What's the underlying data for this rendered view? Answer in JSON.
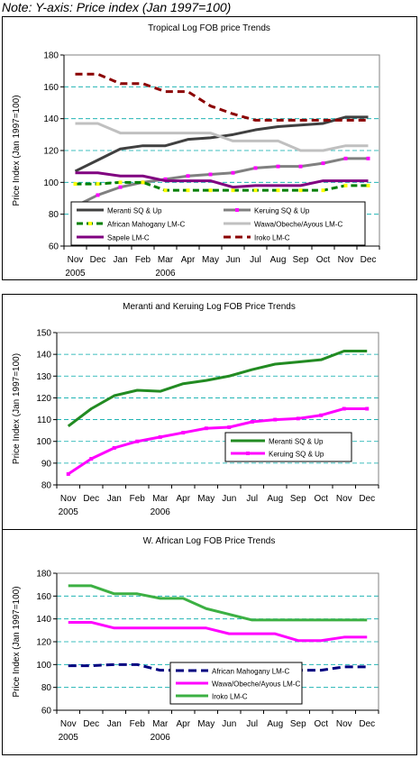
{
  "note": "Note: Y-axis: Price index (Jan 1997=100)",
  "chart_data": [
    {
      "type": "line",
      "title": "Tropical Log FOB price Trends",
      "ylabel": "Price Index (Jan 1997=100)",
      "xlabel": "",
      "categories": [
        "Nov",
        "Dec",
        "Jan",
        "Feb",
        "Mar",
        "Apr",
        "May",
        "Jun",
        "Jul",
        "Aug",
        "Sep",
        "Oct",
        "Nov",
        "Dec"
      ],
      "year_labels": [
        {
          "index": 0,
          "label": "2005"
        },
        {
          "index": 4,
          "label": "2006"
        }
      ],
      "ylim": [
        60,
        180
      ],
      "yticks": [
        60,
        80,
        100,
        120,
        140,
        160,
        180
      ],
      "grid": true,
      "legend_position": "bottom-inside",
      "series": [
        {
          "name": "Meranti SQ & Up",
          "color": "#404040",
          "dash": "",
          "marker": false,
          "values": [
            107,
            114,
            121,
            123,
            123,
            127,
            128,
            130,
            133,
            135,
            136,
            137,
            141,
            141
          ]
        },
        {
          "name": "Keruing SQ & Up",
          "color": "#808080",
          "dash": "",
          "marker": true,
          "marker_color": "#ff00ff",
          "values": [
            85,
            92,
            97,
            100,
            102,
            104,
            105,
            106,
            109,
            110,
            110,
            112,
            115,
            115
          ]
        },
        {
          "name": "African Mahogany LM-C",
          "color": "#008000",
          "dash": "7,4",
          "marker": true,
          "marker_color": "#ffff00",
          "values": [
            99,
            99,
            100,
            100,
            95,
            95,
            95,
            95,
            95,
            95,
            95,
            95,
            98,
            98
          ]
        },
        {
          "name": "Wawa/Obeche/Ayous LM-C",
          "color": "#c0c0c0",
          "dash": "",
          "marker": false,
          "values": [
            137,
            137,
            131,
            131,
            131,
            131,
            131,
            126,
            126,
            126,
            120,
            120,
            123,
            123
          ]
        },
        {
          "name": "Sapele LM-C",
          "color": "#800080",
          "dash": "",
          "marker": false,
          "values": [
            106,
            106,
            104,
            104,
            101,
            101,
            101,
            97,
            98,
            98,
            98,
            101,
            101,
            101
          ]
        },
        {
          "name": "Iroko LM-C",
          "color": "#8b0000",
          "dash": "8,5",
          "marker": false,
          "values": [
            168,
            168,
            162,
            162,
            157,
            157,
            148,
            143,
            139,
            139,
            139,
            139,
            139,
            139
          ]
        }
      ]
    },
    {
      "type": "line",
      "title": "Meranti and Keruing Log FOB Price Trends",
      "ylabel": "Price Index (Jan 1997=100)",
      "xlabel": "",
      "categories": [
        "Nov",
        "Dec",
        "Jan",
        "Feb",
        "Mar",
        "Apr",
        "May",
        "Jun",
        "Jul",
        "Aug",
        "Sep",
        "Oct",
        "Nov",
        "Dec"
      ],
      "year_labels": [
        {
          "index": 0,
          "label": "2005"
        },
        {
          "index": 4,
          "label": "2006"
        }
      ],
      "ylim": [
        80,
        150
      ],
      "yticks": [
        80,
        90,
        100,
        110,
        120,
        130,
        140,
        150
      ],
      "grid": true,
      "legend_position": "bottom-right-inside",
      "series": [
        {
          "name": "Meranti SQ & Up",
          "color": "#228b22",
          "dash": "",
          "marker": false,
          "values": [
            107,
            115,
            121,
            123.5,
            123,
            126.5,
            128,
            130,
            133,
            135.5,
            136.5,
            137.5,
            141.5,
            141.5
          ]
        },
        {
          "name": "Keruing SQ & Up",
          "color": "#ff00ff",
          "dash": "",
          "marker": true,
          "marker_color": "#ff00ff",
          "values": [
            85,
            92,
            97,
            100,
            102,
            104,
            106,
            106.5,
            109,
            110,
            110.5,
            112,
            115,
            115
          ]
        }
      ]
    },
    {
      "type": "line",
      "title": "W. African Log FOB Price Trends",
      "ylabel": "Price Index (Jan 1997=100)",
      "xlabel": "",
      "categories": [
        "Nov",
        "Dec",
        "Jan",
        "Feb",
        "Mar",
        "Apr",
        "May",
        "Jun",
        "Jul",
        "Aug",
        "Sep",
        "Oct",
        "Nov",
        "Dec"
      ],
      "year_labels": [
        {
          "index": 0,
          "label": "2005"
        },
        {
          "index": 4,
          "label": "2006"
        }
      ],
      "ylim": [
        60,
        180
      ],
      "yticks": [
        60,
        80,
        100,
        120,
        140,
        160,
        180
      ],
      "grid": true,
      "legend_position": "bottom-center-inside",
      "series": [
        {
          "name": "African Mahogany LM-C",
          "color": "#000080",
          "dash": "9,5",
          "marker": false,
          "values": [
            99,
            99,
            100,
            100,
            95,
            95,
            95,
            95,
            95,
            95,
            95,
            95,
            98,
            98
          ]
        },
        {
          "name": "Wawa/Obeche/Ayous LM-C",
          "color": "#ff00ff",
          "dash": "",
          "marker": false,
          "values": [
            137,
            137,
            132,
            132,
            132,
            132,
            132,
            127,
            127,
            127,
            121,
            121,
            124,
            124
          ]
        },
        {
          "name": "Iroko LM-C",
          "color": "#3cb043",
          "dash": "",
          "marker": false,
          "values": [
            169,
            169,
            162,
            162,
            158,
            158,
            149,
            144,
            139,
            139,
            139,
            139,
            139,
            139
          ]
        }
      ]
    }
  ]
}
